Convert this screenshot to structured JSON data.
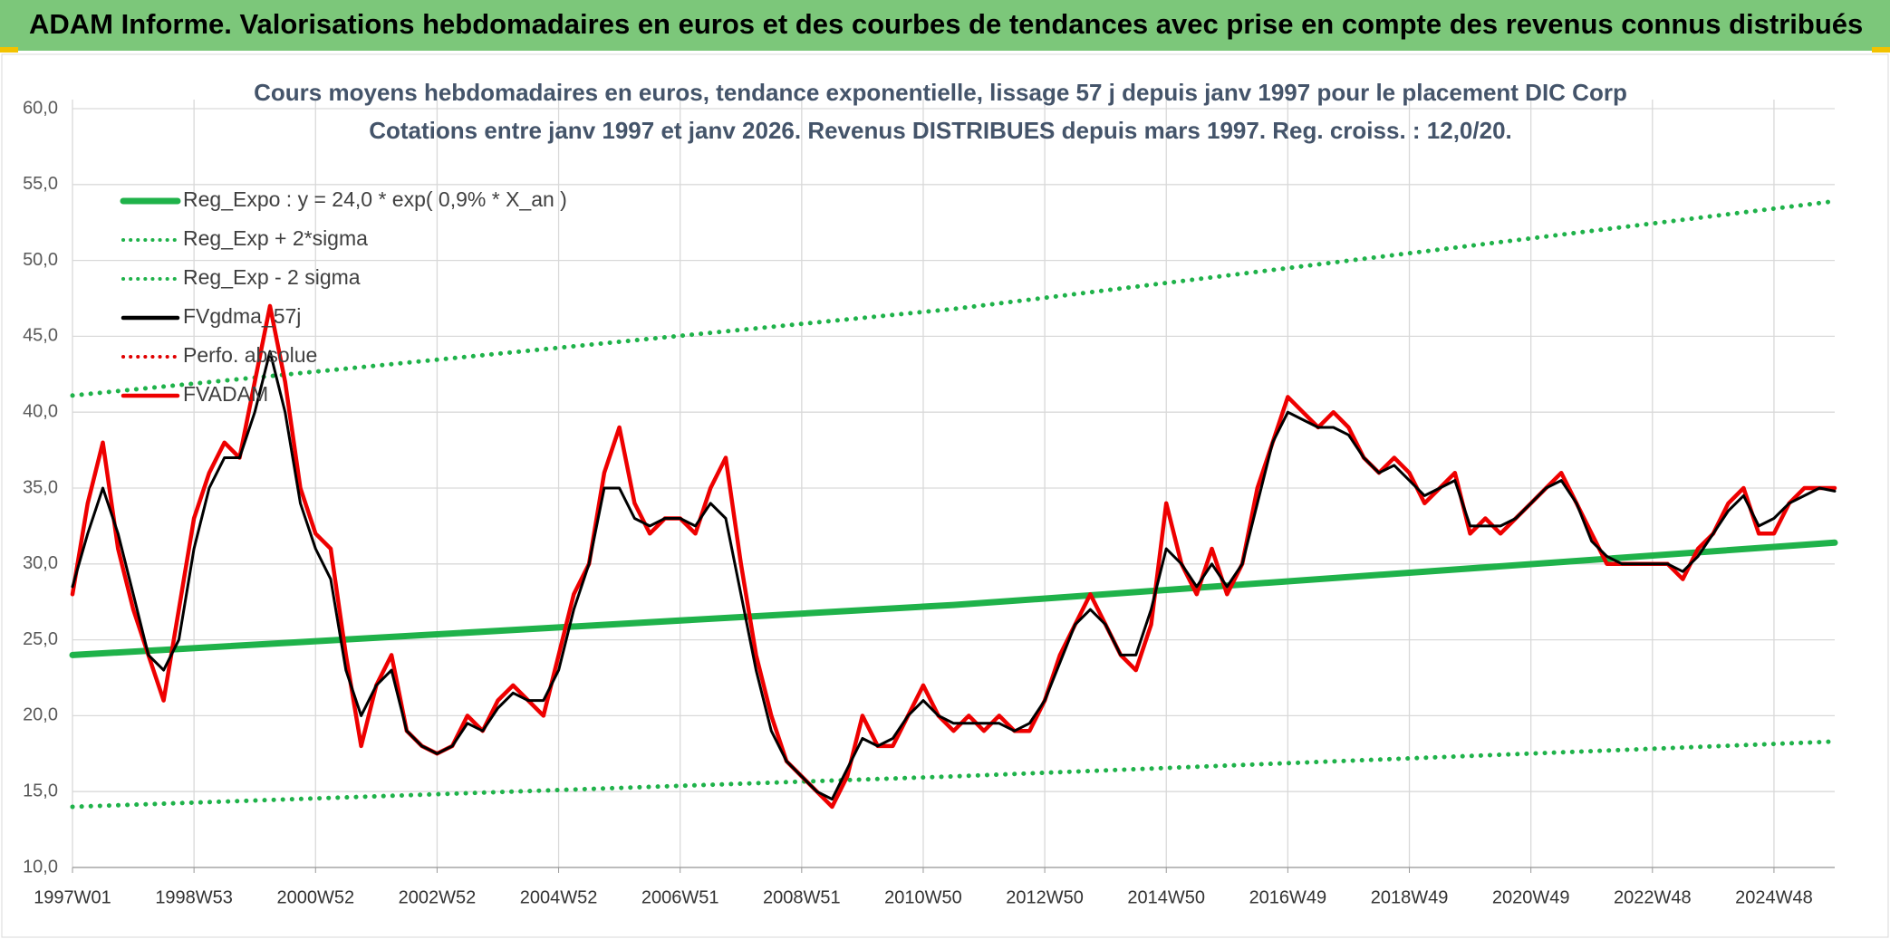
{
  "header": {
    "title": "ADAM Informe. Valorisations hebdomadaires en euros et des courbes de tendances avec prise en compte des revenus connus distribués"
  },
  "chart_data": {
    "type": "line",
    "title": "Cours moyens hebdomadaires en euros, tendance exponentielle, lissage 57 j depuis janv 1997 pour le placement DIC Corp",
    "subtitle": "Cotations entre janv 1997 et janv 2026. Revenus DISTRIBUES depuis mars 1997. Reg. croiss. : 12,0/20.",
    "categories": [
      "1997W01",
      null,
      null,
      null,
      null,
      null,
      null,
      null,
      "1998W53",
      null,
      null,
      null,
      null,
      null,
      null,
      null,
      "2000W52",
      null,
      null,
      null,
      null,
      null,
      null,
      null,
      "2002W52",
      null,
      null,
      null,
      null,
      null,
      null,
      null,
      "2004W52",
      null,
      null,
      null,
      null,
      null,
      null,
      null,
      "2006W51",
      null,
      null,
      null,
      null,
      null,
      null,
      null,
      "2008W51",
      null,
      null,
      null,
      null,
      null,
      null,
      null,
      "2010W50",
      null,
      null,
      null,
      null,
      null,
      null,
      null,
      "2012W50",
      null,
      null,
      null,
      null,
      null,
      null,
      null,
      "2014W50",
      null,
      null,
      null,
      null,
      null,
      null,
      null,
      "2016W49",
      null,
      null,
      null,
      null,
      null,
      null,
      null,
      "2018W49",
      null,
      null,
      null,
      null,
      null,
      null,
      null,
      "2020W49",
      null,
      null,
      null,
      null,
      null,
      null,
      null,
      "2022W48",
      null,
      null,
      null,
      null,
      null,
      null,
      null,
      "2024W48",
      null,
      null,
      null,
      null
    ],
    "ylim": [
      10,
      60
    ],
    "yticks": [
      {
        "value": 10,
        "label": "10,0"
      },
      {
        "value": 15,
        "label": "15,0"
      },
      {
        "value": 20,
        "label": "20,0"
      },
      {
        "value": 25,
        "label": "25,0"
      },
      {
        "value": 30,
        "label": "30,0"
      },
      {
        "value": 35,
        "label": "35,0"
      },
      {
        "value": 40,
        "label": "40,0"
      },
      {
        "value": 45,
        "label": "45,0"
      },
      {
        "value": 50,
        "label": "50,0"
      },
      {
        "value": 55,
        "label": "55,0"
      },
      {
        "value": 60,
        "label": "60,0"
      }
    ],
    "grid": true,
    "series": [
      {
        "name": "Reg_Expo : y = 24,0 * exp( 0,9% *  X_an )",
        "color": "#1fb24a",
        "style": "solid",
        "x": [
          0,
          58,
          116
        ],
        "values": [
          24.0,
          27.3,
          31.4
        ]
      },
      {
        "name": "Reg_Exp + 2*sigma",
        "color": "#1fb24a",
        "style": "dotted",
        "x": [
          0,
          58,
          116
        ],
        "values": [
          41.1,
          46.8,
          53.9
        ]
      },
      {
        "name": "Reg_Exp - 2 sigma",
        "color": "#1fb24a",
        "style": "dotted",
        "x": [
          0,
          58,
          116
        ],
        "values": [
          14.0,
          16.0,
          18.3
        ]
      },
      {
        "name": "FVgdma_57j",
        "color": "#000000",
        "style": "solid",
        "values": [
          28.5,
          32,
          35,
          32,
          28,
          24,
          23,
          25,
          31,
          35,
          37,
          37,
          40,
          44,
          40,
          34,
          31,
          29,
          23,
          20,
          22,
          23,
          19,
          18,
          17.5,
          18,
          19.5,
          19,
          20.5,
          21.5,
          21,
          21,
          23,
          27,
          30,
          35,
          35,
          33,
          32.5,
          33,
          33,
          32.5,
          34,
          33,
          28,
          23,
          19,
          17,
          16,
          15,
          14.5,
          16.5,
          18.5,
          18,
          18.5,
          20,
          21,
          20,
          19.5,
          19.5,
          19.5,
          19.5,
          19,
          19.5,
          21,
          23.5,
          26,
          27,
          26,
          24,
          24,
          27,
          31,
          30,
          28.5,
          30,
          28.5,
          30,
          34,
          38,
          40,
          39.5,
          39,
          39,
          38.5,
          37,
          36,
          36.5,
          35.5,
          34.5,
          35,
          35.5,
          32.5,
          32.5,
          32.5,
          33,
          34,
          35,
          35.5,
          34,
          31.5,
          30.5,
          30,
          30,
          30,
          30,
          29.5,
          30.5,
          32,
          33.5,
          34.5,
          32.5,
          33,
          34,
          34.5,
          35,
          34.8
        ]
      },
      {
        "name": "Perfo. absolue",
        "color": "#e00000",
        "style": "dotted"
      },
      {
        "name": "FVADAM",
        "color": "#ee0000",
        "style": "solid",
        "values": [
          28,
          34,
          38,
          31,
          27,
          24,
          21,
          27,
          33,
          36,
          38,
          37,
          42,
          47,
          42,
          35,
          32,
          31,
          24,
          18,
          22,
          24,
          19,
          18,
          17.5,
          18,
          20,
          19,
          21,
          22,
          21,
          20,
          24,
          28,
          30,
          36,
          39,
          34,
          32,
          33,
          33,
          32,
          35,
          37,
          30,
          24,
          20,
          17,
          16,
          15,
          14,
          16,
          20,
          18,
          18,
          20,
          22,
          20,
          19,
          20,
          19,
          20,
          19,
          19,
          21,
          24,
          26,
          28,
          26,
          24,
          23,
          26,
          34,
          30,
          28,
          31,
          28,
          30,
          35,
          38,
          41,
          40,
          39,
          40,
          39,
          37,
          36,
          37,
          36,
          34,
          35,
          36,
          32,
          33,
          32,
          33,
          34,
          35,
          36,
          34,
          32,
          30,
          30,
          30,
          30,
          30,
          29,
          31,
          32,
          34,
          35,
          32,
          32,
          34,
          35,
          35,
          35
        ]
      }
    ]
  }
}
